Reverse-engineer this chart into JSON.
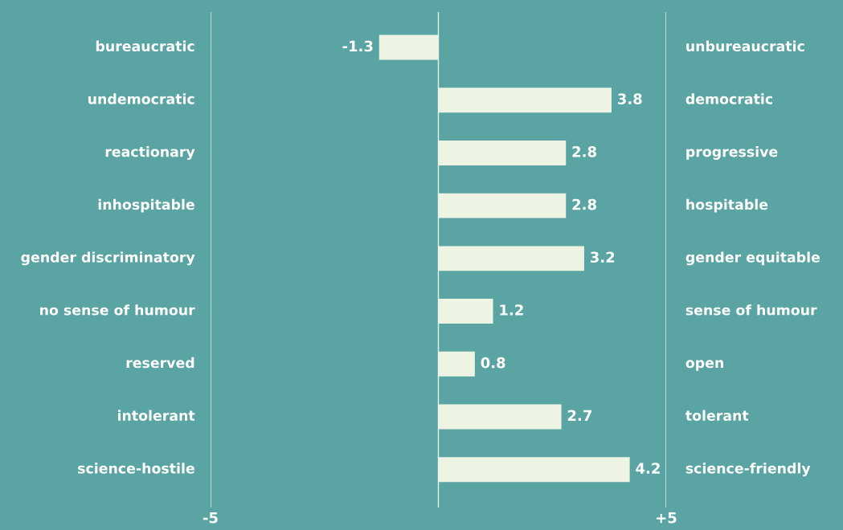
{
  "chart_data": {
    "type": "bar",
    "orientation": "horizontal",
    "categories": [
      "bureaucratic",
      "undemocratic",
      "reactionary",
      "inhospitable",
      "gender discriminatory",
      "no sense of humour",
      "reserved",
      "intolerant",
      "science-hostile"
    ],
    "y2_categories": [
      "unbureaucratic",
      "democratic",
      "progressive",
      "hospitable",
      "gender equitable",
      "sense of humour",
      "open",
      "tolerant",
      "science-friendly"
    ],
    "values": [
      -1.3,
      3.8,
      2.8,
      2.8,
      3.2,
      1.2,
      0.8,
      2.7,
      4.2
    ],
    "color": "#edf4e3",
    "xlim": [
      -5,
      5
    ],
    "xticks": [
      -5,
      {
        "value": 0,
        "label": null
      },
      {
        "value": 5,
        "label": "+5"
      }
    ],
    "grid": "x",
    "data_labels": true
  }
}
